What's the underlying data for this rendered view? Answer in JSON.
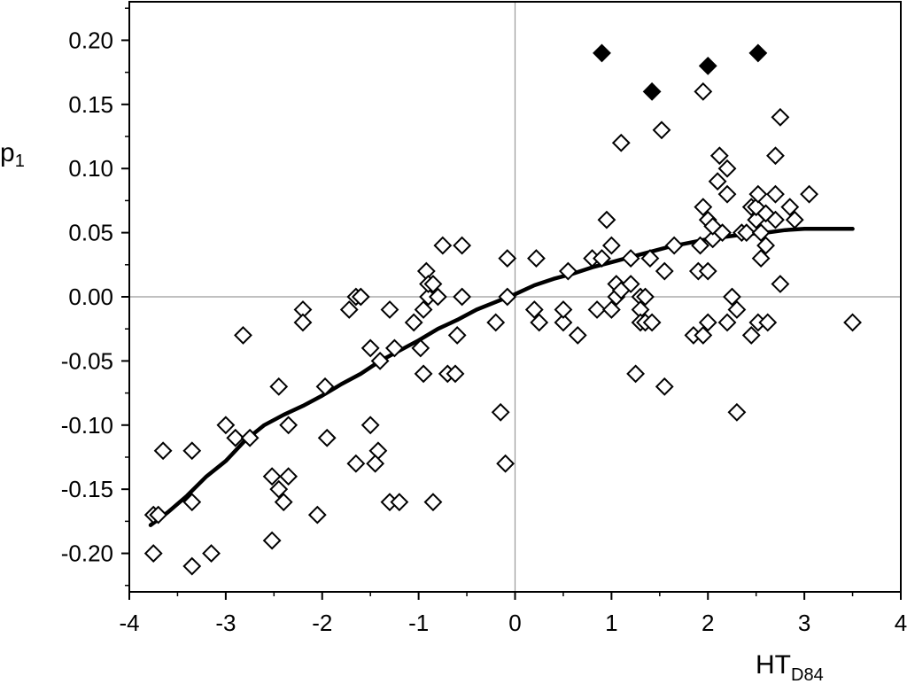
{
  "chart_data": {
    "type": "scatter",
    "title": "",
    "xlabel": {
      "main": "HT",
      "sub": "D84"
    },
    "ylabel": {
      "main": "p",
      "sub": "1"
    },
    "xlim": [
      -4,
      4
    ],
    "ylim": [
      -0.23,
      0.23
    ],
    "x_ticks": [
      -4,
      -3,
      -2,
      -1,
      0,
      1,
      2,
      3,
      4
    ],
    "x_tick_labels": [
      "-4",
      "-3",
      "-2",
      "-1",
      "0",
      "1",
      "2",
      "3",
      "4"
    ],
    "y_ticks": [
      0.2,
      0.15,
      0.1,
      0.05,
      0,
      -0.05,
      -0.1,
      -0.15,
      -0.2
    ],
    "y_tick_labels": [
      "0.20",
      "0.15",
      "0.10",
      "0.05",
      "0.00",
      "-0.05",
      "-0.10",
      "-0.15",
      "-0.20"
    ],
    "grid": false,
    "zero_lines": true,
    "colors": {
      "ink": "#000000",
      "zero_line": "#9a9a9a",
      "marker_fill_open": "#ffffff",
      "marker_fill_solid": "#000000"
    },
    "series": [
      {
        "marker": "diamond-open",
        "points": [
          [
            -3.75,
            -0.17
          ],
          [
            -3.7,
            -0.17
          ],
          [
            -3.75,
            -0.2
          ],
          [
            -3.65,
            -0.12
          ],
          [
            -3.35,
            -0.12
          ],
          [
            -3.35,
            -0.16
          ],
          [
            -3.35,
            -0.21
          ],
          [
            -3.15,
            -0.2
          ],
          [
            -3.0,
            -0.1
          ],
          [
            -2.9,
            -0.11
          ],
          [
            -2.75,
            -0.11
          ],
          [
            -2.82,
            -0.03
          ],
          [
            -2.52,
            -0.14
          ],
          [
            -2.45,
            -0.15
          ],
          [
            -2.4,
            -0.16
          ],
          [
            -2.35,
            -0.14
          ],
          [
            -2.35,
            -0.1
          ],
          [
            -2.45,
            -0.07
          ],
          [
            -2.52,
            -0.19
          ],
          [
            -2.2,
            -0.01
          ],
          [
            -2.2,
            -0.02
          ],
          [
            -1.97,
            -0.07
          ],
          [
            -1.95,
            -0.11
          ],
          [
            -2.05,
            -0.17
          ],
          [
            -1.72,
            -0.01
          ],
          [
            -1.65,
            0.0
          ],
          [
            -1.6,
            0.0
          ],
          [
            -1.65,
            -0.13
          ],
          [
            -1.5,
            -0.04
          ],
          [
            -1.5,
            -0.1
          ],
          [
            -1.42,
            -0.12
          ],
          [
            -1.45,
            -0.13
          ],
          [
            -1.4,
            -0.05
          ],
          [
            -1.3,
            -0.16
          ],
          [
            -1.2,
            -0.16
          ],
          [
            -1.25,
            -0.04
          ],
          [
            -1.3,
            -0.01
          ],
          [
            -1.05,
            -0.02
          ],
          [
            -0.95,
            -0.01
          ],
          [
            -0.9,
            0.0
          ],
          [
            -0.92,
            0.02
          ],
          [
            -0.9,
            0.01
          ],
          [
            -0.85,
            0.01
          ],
          [
            -0.8,
            0.0
          ],
          [
            -0.95,
            -0.06
          ],
          [
            -0.98,
            -0.04
          ],
          [
            -0.85,
            -0.16
          ],
          [
            -0.75,
            0.04
          ],
          [
            -0.7,
            -0.06
          ],
          [
            -0.62,
            -0.06
          ],
          [
            -0.55,
            0.0
          ],
          [
            -0.6,
            -0.03
          ],
          [
            -0.55,
            0.04
          ],
          [
            -0.2,
            -0.02
          ],
          [
            -0.15,
            -0.09
          ],
          [
            -0.1,
            -0.13
          ],
          [
            -0.08,
            0.0
          ],
          [
            -0.08,
            0.03
          ],
          [
            0.2,
            -0.01
          ],
          [
            0.25,
            -0.02
          ],
          [
            0.22,
            0.03
          ],
          [
            0.5,
            -0.02
          ],
          [
            0.5,
            -0.01
          ],
          [
            0.55,
            0.02
          ],
          [
            0.65,
            -0.03
          ],
          [
            0.8,
            0.03
          ],
          [
            0.85,
            -0.01
          ],
          [
            0.9,
            0.03
          ],
          [
            0.95,
            0.06
          ],
          [
            1.0,
            0.04
          ],
          [
            1.0,
            -0.01
          ],
          [
            1.05,
            0.0
          ],
          [
            1.05,
            0.01
          ],
          [
            1.1,
            0.12
          ],
          [
            1.1,
            0.005
          ],
          [
            1.2,
            0.01
          ],
          [
            1.2,
            0.03
          ],
          [
            1.25,
            -0.06
          ],
          [
            1.3,
            0.0
          ],
          [
            1.3,
            -0.01
          ],
          [
            1.3,
            -0.02
          ],
          [
            1.35,
            -0.02
          ],
          [
            1.35,
            0.0
          ],
          [
            1.4,
            0.03
          ],
          [
            1.42,
            -0.02
          ],
          [
            1.52,
            0.13
          ],
          [
            1.55,
            0.02
          ],
          [
            1.55,
            -0.07
          ],
          [
            1.65,
            0.04
          ],
          [
            1.85,
            -0.03
          ],
          [
            1.9,
            0.02
          ],
          [
            1.92,
            0.04
          ],
          [
            1.95,
            0.16
          ],
          [
            1.95,
            0.07
          ],
          [
            1.95,
            -0.03
          ],
          [
            2.0,
            0.06
          ],
          [
            2.0,
            0.02
          ],
          [
            2.0,
            -0.02
          ],
          [
            2.05,
            0.045
          ],
          [
            2.05,
            0.055
          ],
          [
            2.1,
            0.09
          ],
          [
            2.12,
            0.11
          ],
          [
            2.15,
            0.05
          ],
          [
            2.2,
            0.08
          ],
          [
            2.2,
            0.1
          ],
          [
            2.2,
            -0.02
          ],
          [
            2.25,
            0.0
          ],
          [
            2.3,
            -0.01
          ],
          [
            2.3,
            -0.09
          ],
          [
            2.35,
            0.05
          ],
          [
            2.4,
            0.05
          ],
          [
            2.45,
            -0.03
          ],
          [
            2.45,
            0.07
          ],
          [
            2.5,
            0.06
          ],
          [
            2.5,
            0.07
          ],
          [
            2.52,
            0.08
          ],
          [
            2.52,
            -0.02
          ],
          [
            2.55,
            0.03
          ],
          [
            2.55,
            0.05
          ],
          [
            2.6,
            0.04
          ],
          [
            2.6,
            0.065
          ],
          [
            2.62,
            -0.02
          ],
          [
            2.7,
            0.08
          ],
          [
            2.7,
            0.06
          ],
          [
            2.7,
            0.11
          ],
          [
            2.75,
            0.14
          ],
          [
            2.75,
            0.01
          ],
          [
            2.85,
            0.07
          ],
          [
            2.9,
            0.06
          ],
          [
            3.05,
            0.08
          ],
          [
            3.5,
            -0.02
          ]
        ]
      },
      {
        "marker": "diamond-filled",
        "points": [
          [
            0.9,
            0.19
          ],
          [
            1.42,
            0.16
          ],
          [
            2.0,
            0.18
          ],
          [
            2.52,
            0.19
          ]
        ]
      },
      {
        "marker": "none",
        "style": "smooth-line",
        "points": [
          [
            -3.78,
            -0.178
          ],
          [
            -3.6,
            -0.168
          ],
          [
            -3.4,
            -0.155
          ],
          [
            -3.2,
            -0.14
          ],
          [
            -3.0,
            -0.128
          ],
          [
            -2.8,
            -0.112
          ],
          [
            -2.6,
            -0.1
          ],
          [
            -2.4,
            -0.092
          ],
          [
            -2.2,
            -0.085
          ],
          [
            -2.0,
            -0.077
          ],
          [
            -1.8,
            -0.068
          ],
          [
            -1.6,
            -0.06
          ],
          [
            -1.4,
            -0.05
          ],
          [
            -1.2,
            -0.042
          ],
          [
            -1.0,
            -0.034
          ],
          [
            -0.8,
            -0.025
          ],
          [
            -0.6,
            -0.018
          ],
          [
            -0.4,
            -0.01
          ],
          [
            -0.2,
            -0.004
          ],
          [
            0.0,
            0.002
          ],
          [
            0.2,
            0.009
          ],
          [
            0.4,
            0.014
          ],
          [
            0.6,
            0.018
          ],
          [
            0.8,
            0.023
          ],
          [
            1.0,
            0.027
          ],
          [
            1.2,
            0.031
          ],
          [
            1.4,
            0.035
          ],
          [
            1.6,
            0.039
          ],
          [
            1.8,
            0.042
          ],
          [
            2.0,
            0.045
          ],
          [
            2.2,
            0.047
          ],
          [
            2.4,
            0.049
          ],
          [
            2.6,
            0.05
          ],
          [
            2.8,
            0.052
          ],
          [
            3.0,
            0.053
          ],
          [
            3.2,
            0.053
          ],
          [
            3.5,
            0.053
          ]
        ]
      }
    ]
  }
}
